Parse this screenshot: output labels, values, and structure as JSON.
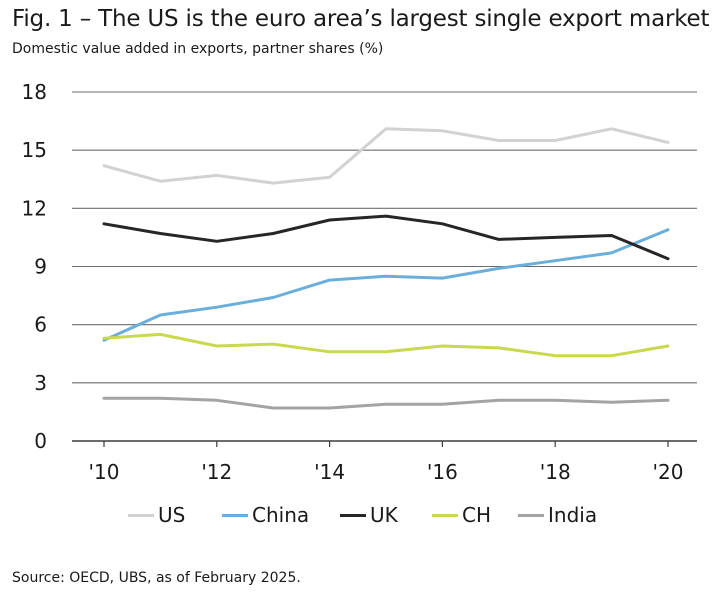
{
  "header": {
    "title": "Fig. 1 – The US is the euro area’s largest single export market",
    "subtitle": "Domestic value added in exports, partner shares (%)"
  },
  "footer": {
    "source": "Source: OECD, UBS, as of February 2025."
  },
  "chart_data": {
    "type": "line",
    "title": "Fig. 1 – The US is the euro area’s largest single export market",
    "subtitle": "Domestic value added in exports, partner shares (%)",
    "x": [
      2010,
      2011,
      2012,
      2013,
      2014,
      2015,
      2016,
      2017,
      2018,
      2019,
      2020
    ],
    "xticks": [
      "'10",
      "'12",
      "'14",
      "'16",
      "'18",
      "'20"
    ],
    "xtick_values": [
      2010,
      2012,
      2014,
      2016,
      2018,
      2020
    ],
    "yticks": [
      0,
      3,
      6,
      9,
      12,
      15,
      18
    ],
    "ylim": [
      0,
      18
    ],
    "grid": true,
    "legend_position": "bottom",
    "series": [
      {
        "name": "US",
        "color": "#d2d2d2",
        "values": [
          14.2,
          13.4,
          13.7,
          13.3,
          13.6,
          16.1,
          16.0,
          15.5,
          15.5,
          16.1,
          15.4
        ]
      },
      {
        "name": "China",
        "color": "#6aafdc",
        "values": [
          5.2,
          6.5,
          6.9,
          7.4,
          8.3,
          8.5,
          8.4,
          8.9,
          9.3,
          9.7,
          10.9
        ]
      },
      {
        "name": "UK",
        "color": "#262626",
        "values": [
          11.2,
          10.7,
          10.3,
          10.7,
          11.4,
          11.6,
          11.2,
          10.4,
          10.5,
          10.6,
          9.4
        ]
      },
      {
        "name": "CH",
        "color": "#c8d94f",
        "values": [
          5.3,
          5.5,
          4.9,
          5.0,
          4.6,
          4.6,
          4.9,
          4.8,
          4.4,
          4.4,
          4.9
        ]
      },
      {
        "name": "India",
        "color": "#a3a3a3",
        "values": [
          2.2,
          2.2,
          2.1,
          1.7,
          1.7,
          1.9,
          1.9,
          2.1,
          2.1,
          2.0,
          2.1
        ]
      }
    ]
  }
}
